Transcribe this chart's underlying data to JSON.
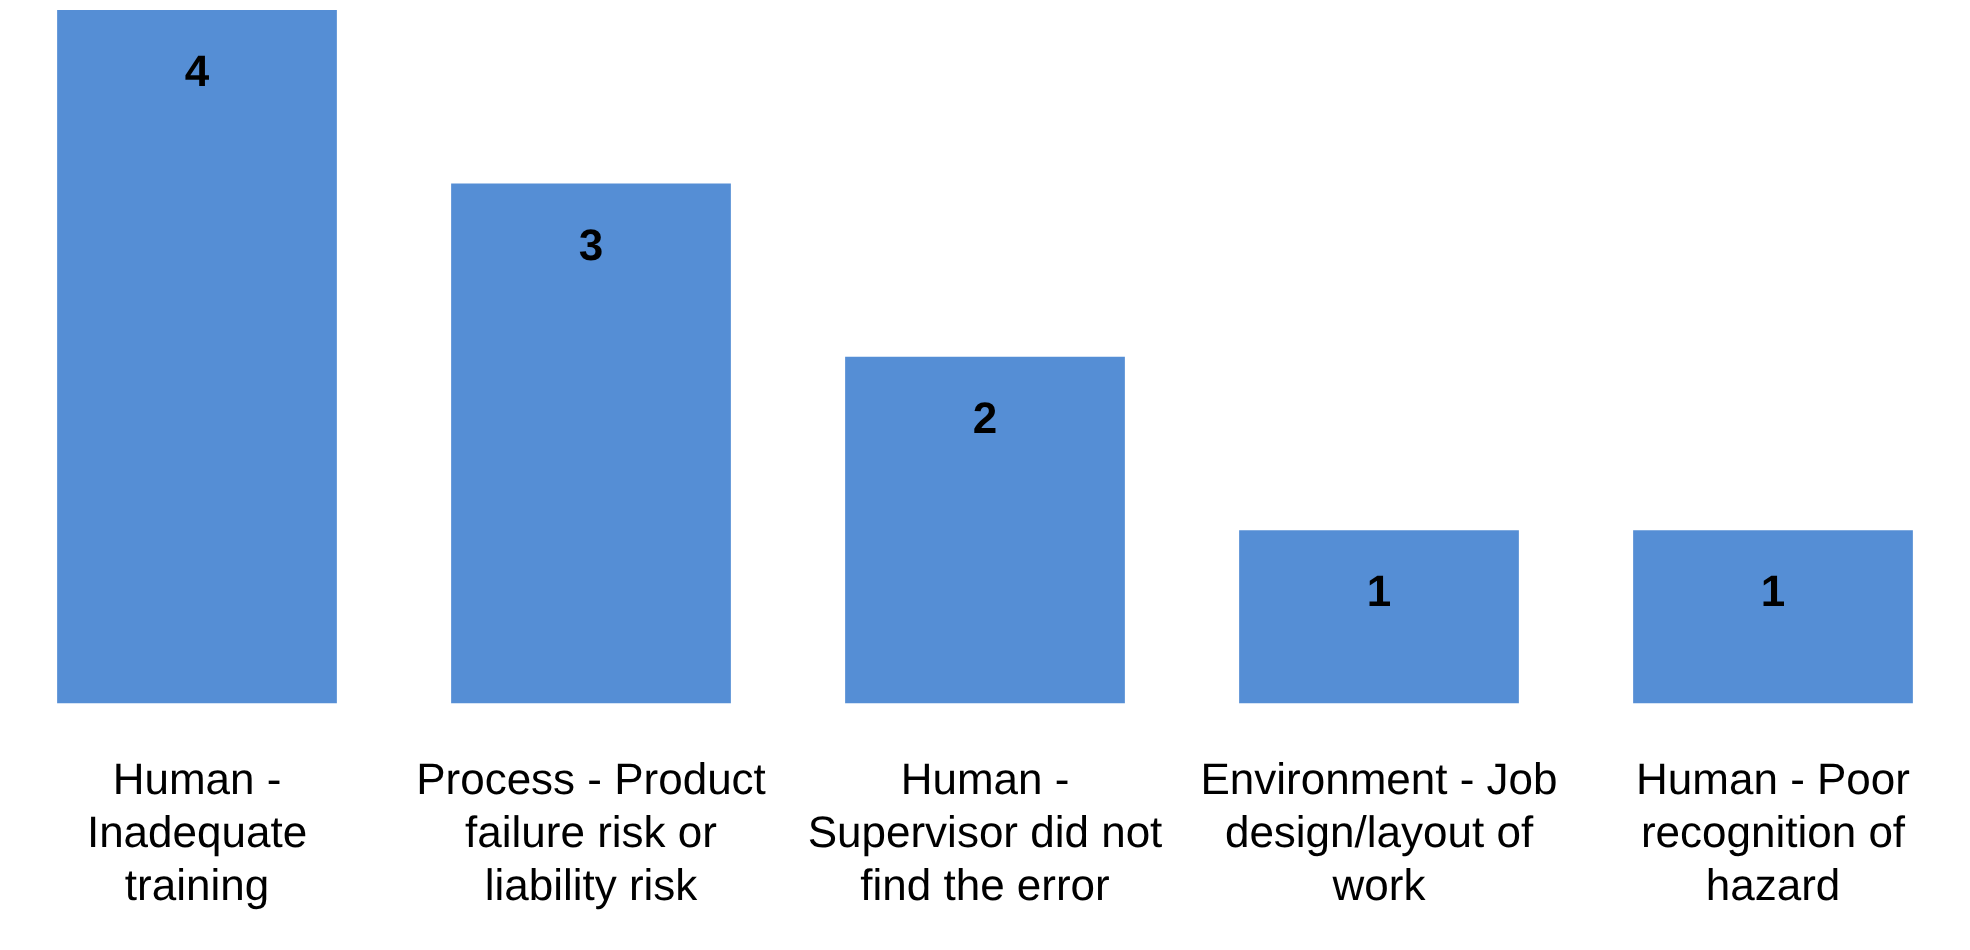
{
  "chart_data": {
    "type": "bar",
    "categories": [
      "Human - Inadequate training",
      "Process - Product failure risk or liability risk",
      "Human - Supervisor did not find the error",
      "Environment - Job design/layout of work",
      "Human - Poor recognition of hazard"
    ],
    "values": [
      4,
      3,
      2,
      1,
      1
    ],
    "color": "#558ed5",
    "data_labels": true,
    "grid": false,
    "legend": false,
    "tick_labels": "x"
  }
}
